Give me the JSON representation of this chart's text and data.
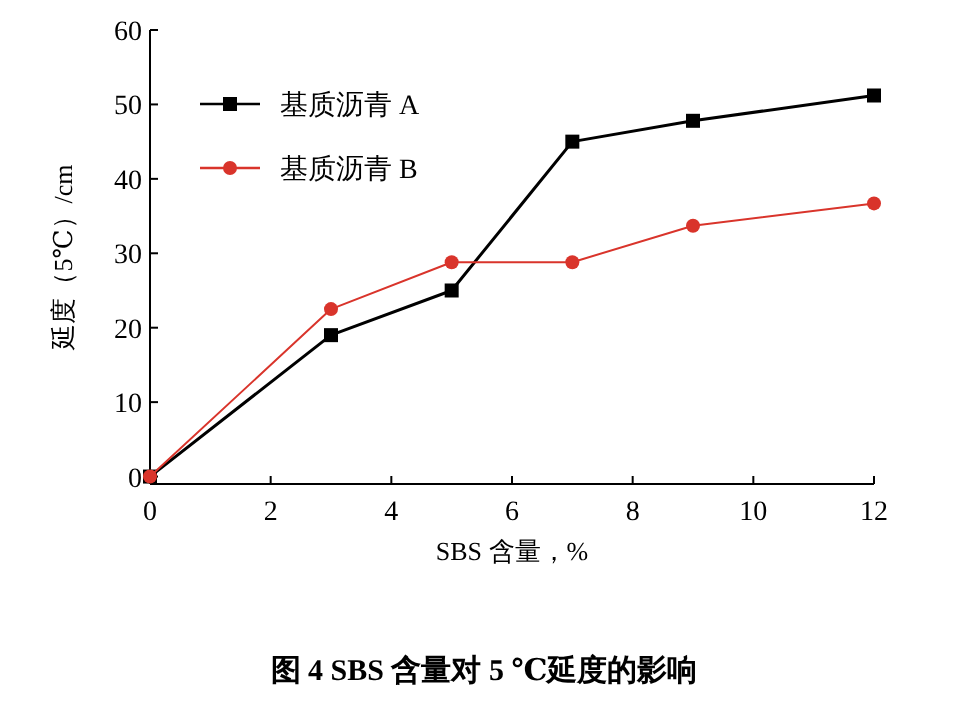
{
  "chart_data": {
    "type": "line",
    "title": "图 4  SBS 含量对 5 ℃延度的影响",
    "xlabel": "SBS 含量，%",
    "ylabel": "延度（5℃）/cm",
    "x": [
      0,
      3,
      5,
      7,
      9,
      12
    ],
    "series": [
      {
        "name": "基质沥青 A",
        "color": "#000000",
        "marker": "square",
        "values": [
          0,
          19,
          25,
          45,
          47.8,
          51.2
        ]
      },
      {
        "name": "基质沥青 B",
        "color": "#d9342b",
        "marker": "circle",
        "values": [
          0,
          22.5,
          28.8,
          28.8,
          33.7,
          36.7
        ]
      }
    ],
    "xlim": [
      0,
      12
    ],
    "xticks": [
      0,
      2,
      4,
      6,
      8,
      10,
      12
    ],
    "ylim": [
      -1,
      60
    ],
    "yticks": [
      0,
      10,
      20,
      30,
      40,
      50,
      60
    ],
    "legend": "top left",
    "grid": false
  }
}
